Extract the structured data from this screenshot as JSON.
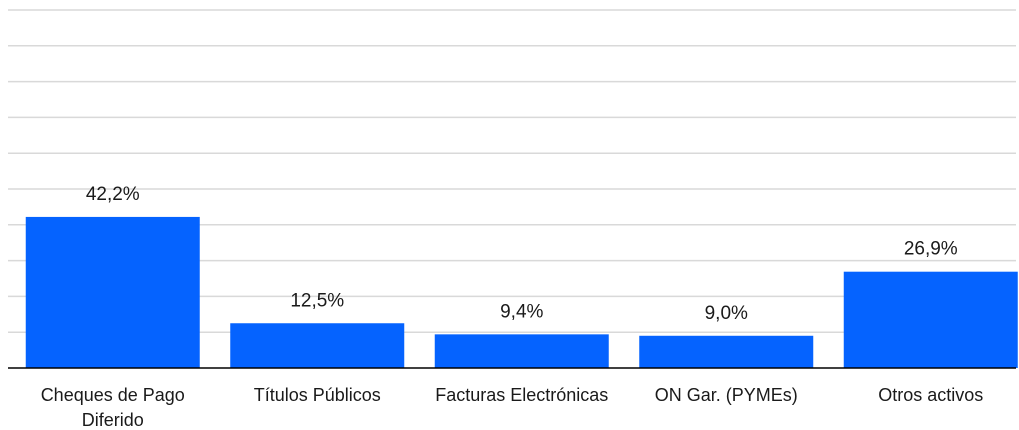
{
  "chart_data": {
    "type": "bar",
    "categories": [
      [
        "Cheques de Pago",
        "Diferido"
      ],
      [
        "Títulos Públicos"
      ],
      [
        "Facturas Electrónicas"
      ],
      [
        "ON Gar. (PYMEs)"
      ],
      [
        "Otros activos"
      ]
    ],
    "values": [
      42.2,
      12.5,
      9.4,
      9.0,
      26.9
    ],
    "data_labels": [
      "42,2%",
      "12,5%",
      "9,4%",
      "9,0%",
      "26,9%"
    ],
    "ylim": [
      0,
      100
    ],
    "gridlines": [
      10,
      20,
      30,
      40,
      50,
      60,
      70,
      80,
      90,
      100
    ],
    "grid": true,
    "legend": "none",
    "bar_color": "#0563ff",
    "grid_color": "#d9d9d9"
  }
}
